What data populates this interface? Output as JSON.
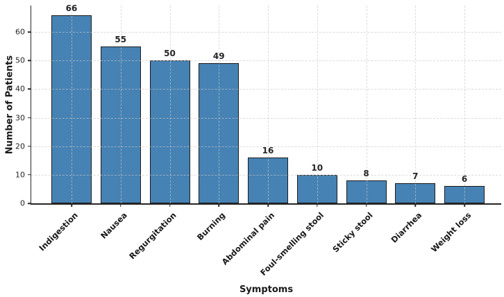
{
  "chart_data": {
    "type": "bar",
    "categories": [
      "Indigestion",
      "Nausea",
      "Regurgitation",
      "Burning",
      "Abdominal pain",
      "Foul-smelling stool",
      "Sticky stool",
      "Diarrhea",
      "Weight loss"
    ],
    "values": [
      66,
      55,
      50,
      49,
      16,
      10,
      8,
      7,
      6
    ],
    "title": "",
    "xlabel": "Symptoms",
    "ylabel": "Number of Patients",
    "ylim": [
      0,
      69.3
    ],
    "yticks": [
      0,
      10,
      20,
      30,
      40,
      50,
      60
    ],
    "bar_color": "#4682B4",
    "bar_edge_color": "#1c1c1c",
    "grid": true,
    "grid_style": "dashed",
    "grid_color": "#c8c8c8",
    "legend": "none",
    "value_labels_shown": true,
    "x_tick_rotation_deg": 45
  }
}
